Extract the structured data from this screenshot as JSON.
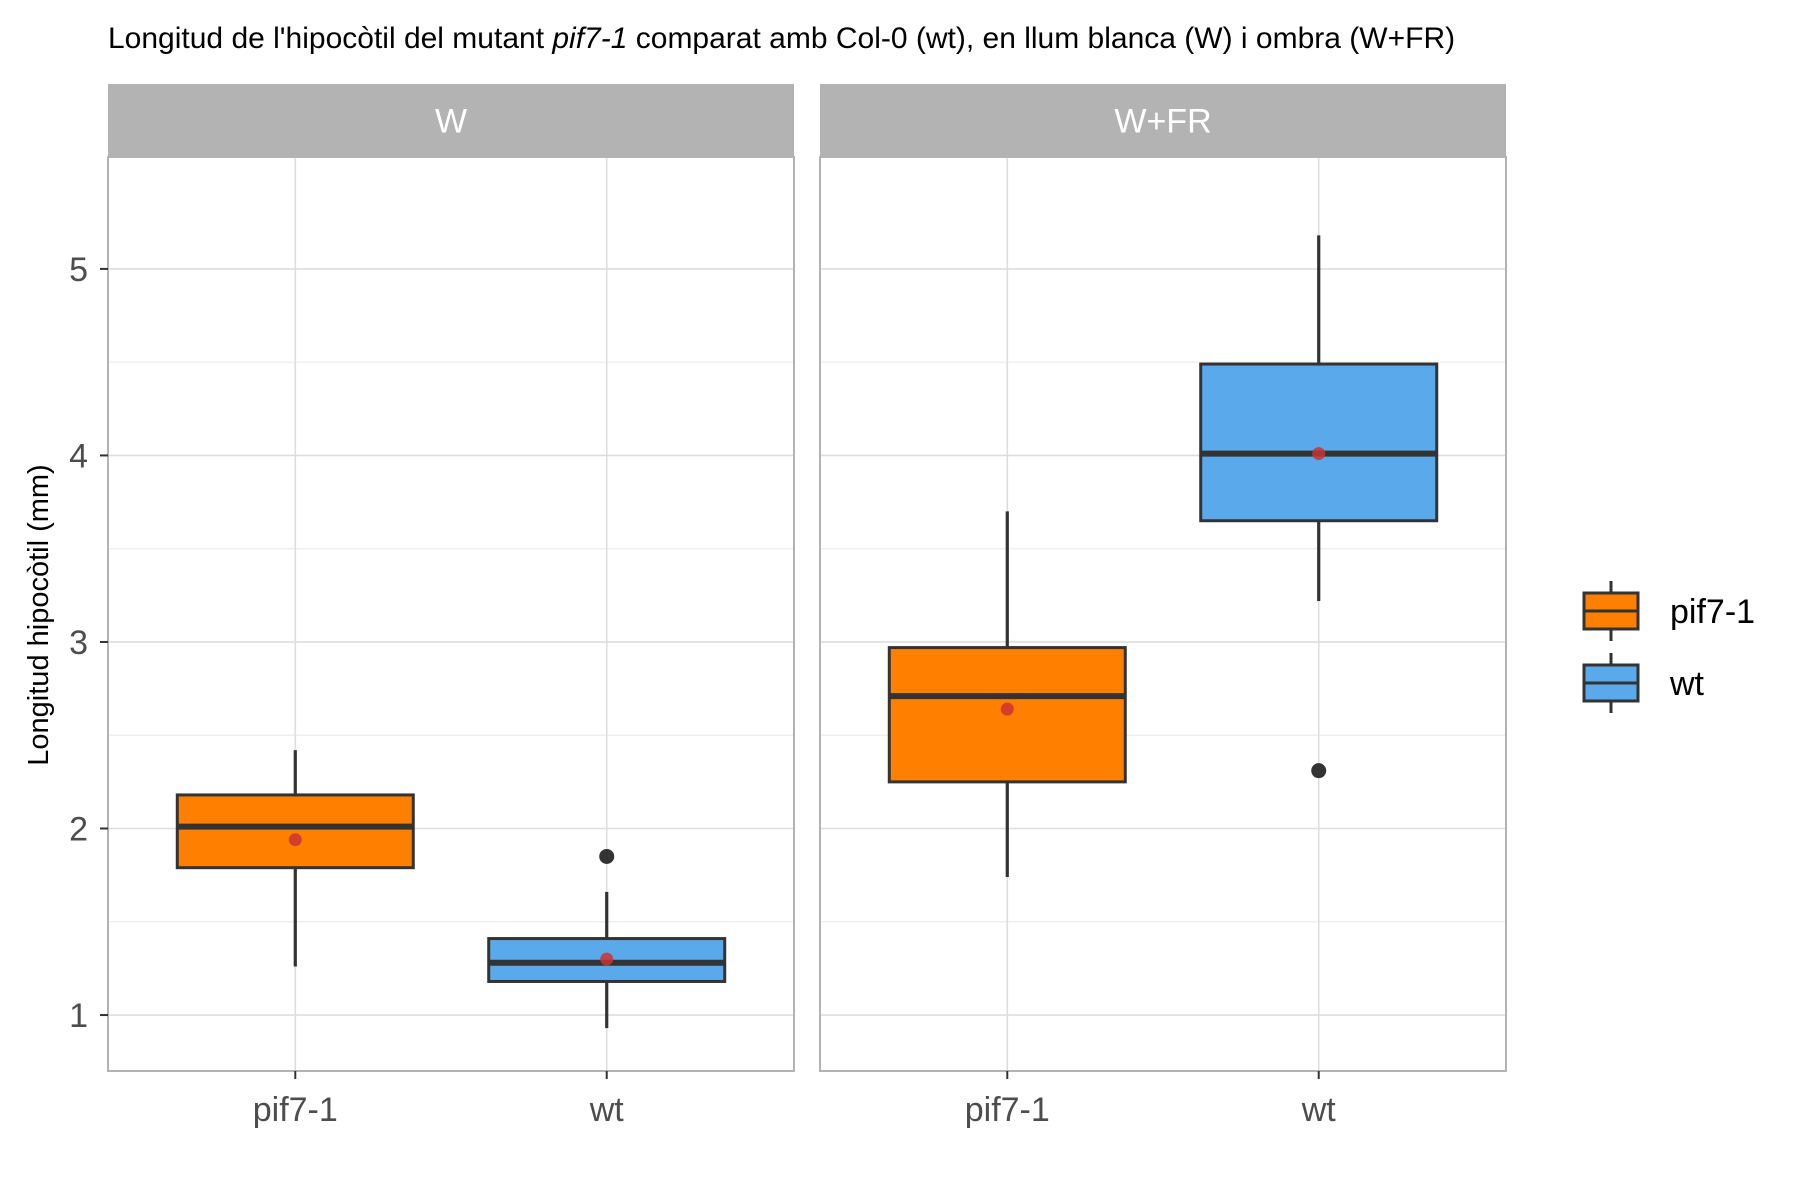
{
  "chart_data": {
    "type": "boxplot",
    "title": {
      "before": "Longitud de l'hipocòtil del mutant ",
      "italic": "pif7-1",
      "after": " comparat amb Col-0 (wt), en llum blanca (W) i ombra (W+FR)"
    },
    "ylabel": "Longitud hipocòtil (mm)",
    "xlabel": "",
    "ylim": [
      0.7,
      5.6
    ],
    "yticks": [
      1,
      2,
      3,
      4,
      5
    ],
    "categories": [
      "pif7-1",
      "wt"
    ],
    "grid": true,
    "legend_position": "right",
    "panels": [
      {
        "label": "W",
        "boxes": [
          {
            "group": "pif7-1",
            "whisker_low": 1.26,
            "q1": 1.79,
            "median": 2.01,
            "q3": 2.18,
            "whisker_high": 2.42,
            "mean": 1.94,
            "outliers": []
          },
          {
            "group": "wt",
            "whisker_low": 0.93,
            "q1": 1.18,
            "median": 1.28,
            "q3": 1.41,
            "whisker_high": 1.66,
            "mean": 1.3,
            "outliers": [
              1.85
            ]
          }
        ]
      },
      {
        "label": "W+FR",
        "boxes": [
          {
            "group": "pif7-1",
            "whisker_low": 1.74,
            "q1": 2.25,
            "median": 2.71,
            "q3": 2.97,
            "whisker_high": 3.7,
            "mean": 2.64,
            "outliers": []
          },
          {
            "group": "wt",
            "whisker_low": 3.22,
            "q1": 3.65,
            "median": 4.01,
            "q3": 4.49,
            "whisker_high": 5.18,
            "mean": 4.01,
            "outliers": [
              2.31
            ]
          }
        ]
      }
    ],
    "legend": [
      {
        "label": "pif7-1",
        "color": "#ff7f00"
      },
      {
        "label": "wt",
        "color": "#5aaaeb"
      }
    ],
    "colors": {
      "box_outline": "#333333",
      "mean_point": "#cc3333",
      "strip_fill": "#b3b3b3",
      "grid": "#dedede",
      "panel_border": "#b3b3b3"
    }
  }
}
